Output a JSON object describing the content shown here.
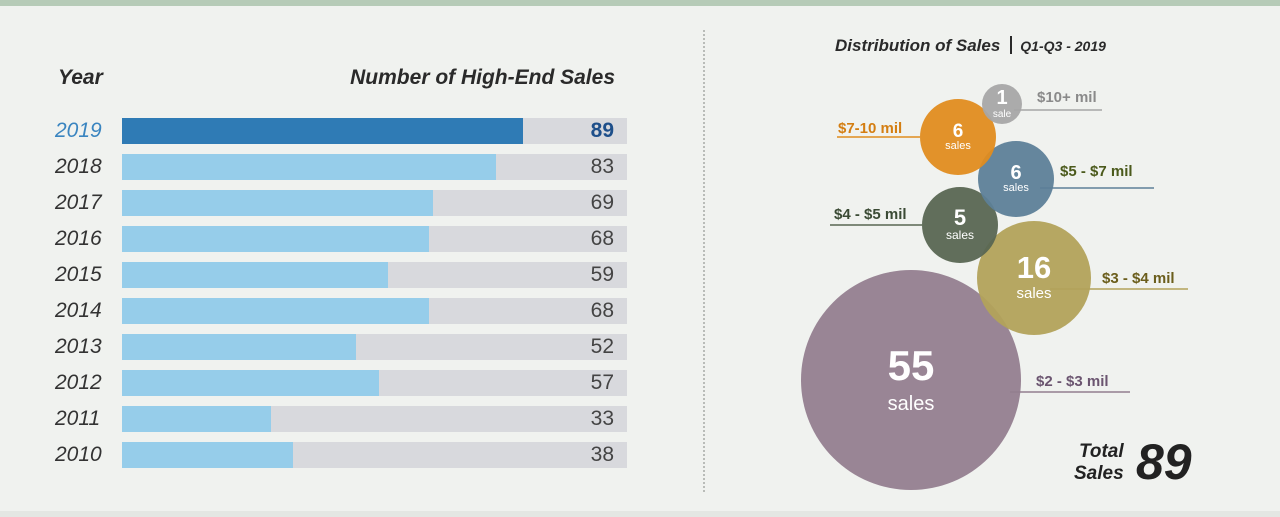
{
  "header": {
    "year_label": "Year",
    "sales_label": "Number of High-End Sales"
  },
  "distribution": {
    "title": "Distribution of Sales",
    "subtitle": "Q1-Q3 - 2019"
  },
  "total": {
    "label_line1": "Total",
    "label_line2": "Sales",
    "value": "89"
  },
  "colors": {
    "bar_highlight": "#2f7bb5",
    "bar_normal": "#96cdea",
    "bar_track": "#d8d9dd"
  },
  "chart_data": [
    {
      "type": "bar",
      "orientation": "horizontal",
      "categories": [
        "2019",
        "2018",
        "2017",
        "2016",
        "2015",
        "2014",
        "2013",
        "2012",
        "2011",
        "2010"
      ],
      "values": [
        89,
        83,
        69,
        68,
        59,
        68,
        52,
        57,
        33,
        38
      ],
      "highlight": "2019",
      "xlim": [
        0,
        112
      ],
      "grid": false
    },
    {
      "type": "bubble",
      "series": [
        {
          "category": "$10+ mil",
          "count": "1",
          "unit": "sale",
          "value": 1,
          "color": "#a6a6a6"
        },
        {
          "category": "$7-10 mil",
          "count": "6",
          "unit": "sales",
          "value": 6,
          "color": "#e08c1f"
        },
        {
          "category": "$5 - $7 mil",
          "count": "6",
          "unit": "sales",
          "value": 6,
          "color": "#5d7f98"
        },
        {
          "category": "$4 - $5 mil",
          "count": "5",
          "unit": "sales",
          "value": 5,
          "color": "#586652"
        },
        {
          "category": "$3 - $4 mil",
          "count": "16",
          "unit": "sales",
          "value": 16,
          "color": "#b2a25a"
        },
        {
          "category": "$2 - $3 mil",
          "count": "55",
          "unit": "sales",
          "value": 55,
          "color": "#937e8f"
        }
      ]
    }
  ]
}
